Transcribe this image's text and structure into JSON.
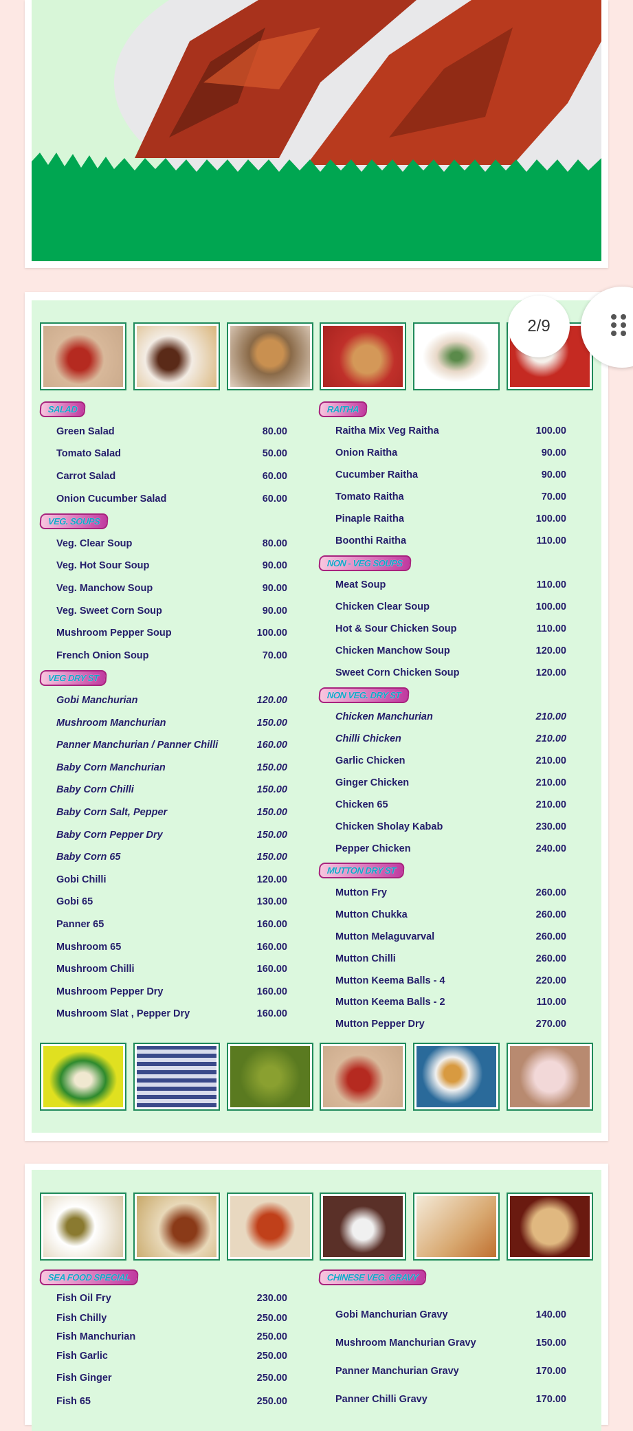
{
  "pager": {
    "label": "2/9"
  },
  "colors": {
    "panel": "#dcf8de",
    "item_text": "#241d6b",
    "badge_text": "#12a6c8",
    "badge_border": "#a8237e",
    "grass": "#00a651"
  },
  "page2": {
    "left": [
      {
        "title": "SALAD",
        "items": [
          [
            "Green Salad",
            "80.00"
          ],
          [
            "Tomato Salad",
            "50.00"
          ],
          [
            "Carrot Salad",
            "60.00"
          ],
          [
            "Onion Cucumber Salad",
            "60.00"
          ]
        ]
      },
      {
        "title": "VEG. SOUPS",
        "items": [
          [
            "Veg. Clear Soup",
            "80.00"
          ],
          [
            "Veg. Hot Sour Soup",
            "90.00"
          ],
          [
            "Veg. Manchow Soup",
            "90.00"
          ],
          [
            "Veg. Sweet Corn Soup",
            "90.00"
          ],
          [
            "Mushroom Pepper Soup",
            "100.00"
          ],
          [
            "French Onion Soup",
            "70.00"
          ]
        ]
      },
      {
        "title": "VEG DRY ST",
        "items": [
          [
            "Gobi Manchurian",
            "120.00",
            true
          ],
          [
            "Mushroom Manchurian",
            "150.00",
            true
          ],
          [
            "Panner Manchurian / Panner Chilli",
            "160.00",
            true
          ],
          [
            "Baby Corn Manchurian",
            "150.00",
            true
          ],
          [
            "Baby Corn Chilli",
            "150.00",
            true
          ],
          [
            "Baby Corn Salt, Pepper",
            "150.00",
            true
          ],
          [
            "Baby Corn Pepper Dry",
            "150.00",
            true
          ],
          [
            "Baby Corn 65",
            "150.00",
            true
          ],
          [
            "Gobi Chilli",
            "120.00"
          ],
          [
            "Gobi 65",
            "130.00"
          ],
          [
            "Panner 65",
            "160.00"
          ],
          [
            "Mushroom 65",
            "160.00"
          ],
          [
            "Mushroom Chilli",
            "160.00"
          ],
          [
            "Mushroom Pepper Dry",
            "160.00"
          ],
          [
            "Mushroom Slat , Pepper Dry",
            "160.00"
          ]
        ]
      }
    ],
    "right": [
      {
        "title": "RAITHA",
        "items": [
          [
            "Raitha Mix Veg Raitha",
            "100.00"
          ],
          [
            "Onion Raitha",
            "90.00"
          ],
          [
            "Cucumber Raitha",
            "90.00"
          ],
          [
            "Tomato Raitha",
            "70.00"
          ],
          [
            "Pinaple Raitha",
            "100.00"
          ],
          [
            "Boonthi Raitha",
            "110.00"
          ]
        ]
      },
      {
        "title": "NON - VEG SOUPS",
        "items": [
          [
            "Meat Soup",
            "110.00"
          ],
          [
            "Chicken Clear Soup",
            "100.00"
          ],
          [
            "Hot & Sour Chicken Soup",
            "110.00"
          ],
          [
            "Chicken Manchow Soup",
            "120.00"
          ],
          [
            "Sweet Corn Chicken Soup",
            "120.00"
          ]
        ]
      },
      {
        "title": "NON VEG. DRY ST",
        "items": [
          [
            "Chicken Manchurian",
            "210.00",
            true
          ],
          [
            "Chilli Chicken",
            "210.00",
            true
          ],
          [
            "Garlic Chicken",
            "210.00"
          ],
          [
            "Ginger Chicken",
            "210.00"
          ],
          [
            "Chicken 65",
            "210.00"
          ],
          [
            "Chicken Sholay Kabab",
            "230.00"
          ],
          [
            "Pepper Chicken",
            "240.00"
          ]
        ]
      },
      {
        "title": "MUTTON DRY ST",
        "items": [
          [
            "Mutton Fry",
            "260.00"
          ],
          [
            "Mutton Chukka",
            "260.00"
          ],
          [
            "Mutton Melaguvarval",
            "260.00"
          ],
          [
            "Mutton Chilli",
            "260.00"
          ],
          [
            "Mutton Keema Balls - 4",
            "220.00"
          ],
          [
            "Mutton Keema Balls - 2",
            "110.00"
          ],
          [
            "Mutton Pepper Dry",
            "270.00"
          ]
        ]
      }
    ]
  },
  "page3": {
    "left": [
      {
        "title": "SEA FOOD SPECIAL",
        "items": [
          [
            "Fish Oil Fry",
            "230.00"
          ],
          [
            "Fish Chilly",
            "250.00"
          ],
          [
            "Fish Manchurian",
            "250.00"
          ],
          [
            "Fish Garlic",
            "250.00"
          ],
          [
            "Fish Ginger",
            "250.00"
          ],
          [
            "Fish 65",
            "250.00"
          ]
        ]
      }
    ],
    "right": [
      {
        "title": "CHINESE VEG. GRAVY",
        "items": [
          [
            "Gobi Manchurian Gravy",
            "140.00"
          ],
          [
            "Mushroom Manchurian Gravy",
            "150.00"
          ],
          [
            "Panner Manchurian Gravy",
            "170.00"
          ],
          [
            "Panner Chilli Gravy",
            "170.00"
          ]
        ]
      }
    ]
  }
}
